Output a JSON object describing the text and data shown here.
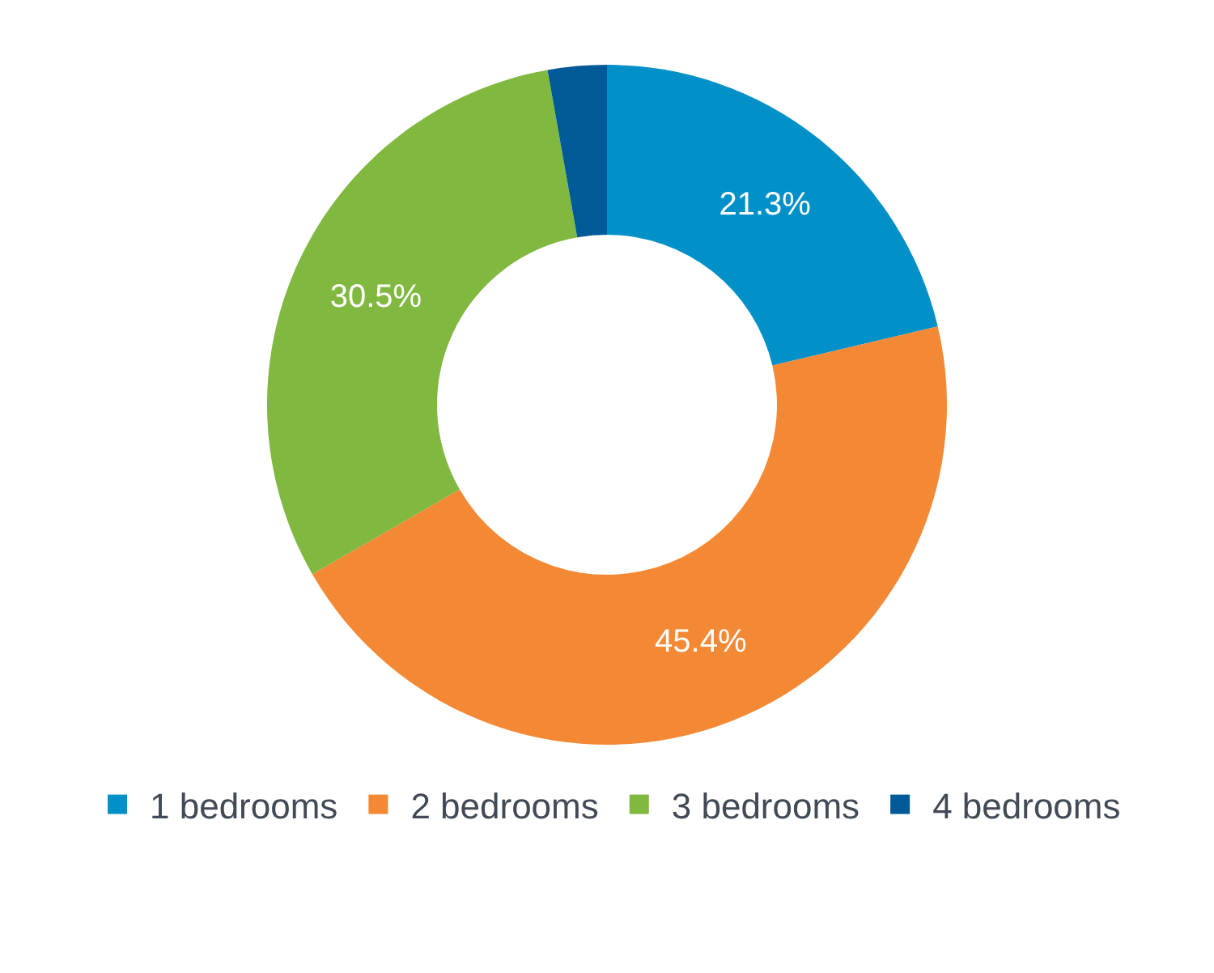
{
  "chart_data": {
    "type": "donut",
    "categories": [
      "1 bedrooms",
      "2 bedrooms",
      "3 bedrooms",
      "4 bedrooms"
    ],
    "values": [
      21.3,
      45.4,
      30.5,
      2.8
    ],
    "colors": [
      "#0290c8",
      "#f48935",
      "#80b840",
      "#005a98"
    ],
    "value_labels": [
      "21.3%",
      "45.4%",
      "30.5%",
      null
    ],
    "legend": "bottom"
  }
}
